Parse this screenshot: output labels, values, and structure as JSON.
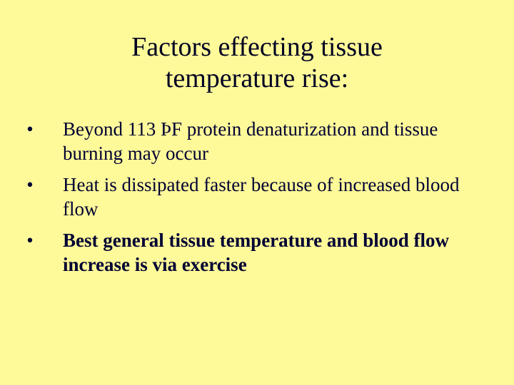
{
  "slide": {
    "title_line1": "Factors effecting tissue",
    "title_line2": "temperature rise:",
    "bullets": [
      {
        "marker": "•",
        "text": "Beyond 113 ÞF protein denaturization and tissue burning may occur",
        "bold": false
      },
      {
        "marker": "•",
        "text": "Heat is dissipated faster because of increased blood flow",
        "bold": false
      },
      {
        "marker": "•",
        "text": "Best general tissue temperature and blood flow increase is via exercise",
        "bold": true
      }
    ]
  },
  "colors": {
    "background": "#fffa99",
    "text": "#000033"
  }
}
